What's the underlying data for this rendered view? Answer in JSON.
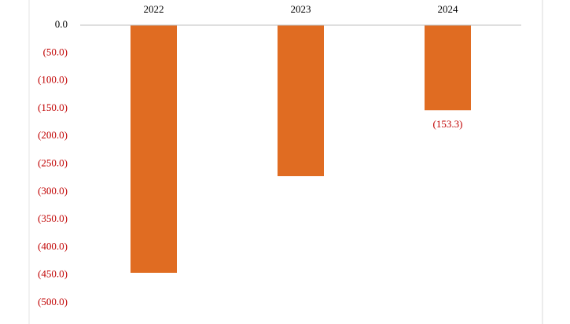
{
  "chart_data": {
    "type": "bar",
    "categories": [
      "2022",
      "2023",
      "2024"
    ],
    "values": [
      -446,
      -272,
      -153.3
    ],
    "value_labels": [
      null,
      null,
      "(153.3)"
    ],
    "color": "#e06c22",
    "label_color": "#c00000",
    "negative_tick_color": "#c00000",
    "ylim": [
      -500,
      0
    ],
    "yticks": [
      {
        "value": 0,
        "label": "0.0"
      },
      {
        "value": -50,
        "label": "(50.0)"
      },
      {
        "value": -100,
        "label": "(100.0)"
      },
      {
        "value": -150,
        "label": "(150.0)"
      },
      {
        "value": -200,
        "label": "(200.0)"
      },
      {
        "value": -250,
        "label": "(250.0)"
      },
      {
        "value": -300,
        "label": "(300.0)"
      },
      {
        "value": -350,
        "label": "(350.0)"
      },
      {
        "value": -400,
        "label": "(400.0)"
      },
      {
        "value": -450,
        "label": "(450.0)"
      },
      {
        "value": -500,
        "label": "(500.0)"
      }
    ]
  }
}
